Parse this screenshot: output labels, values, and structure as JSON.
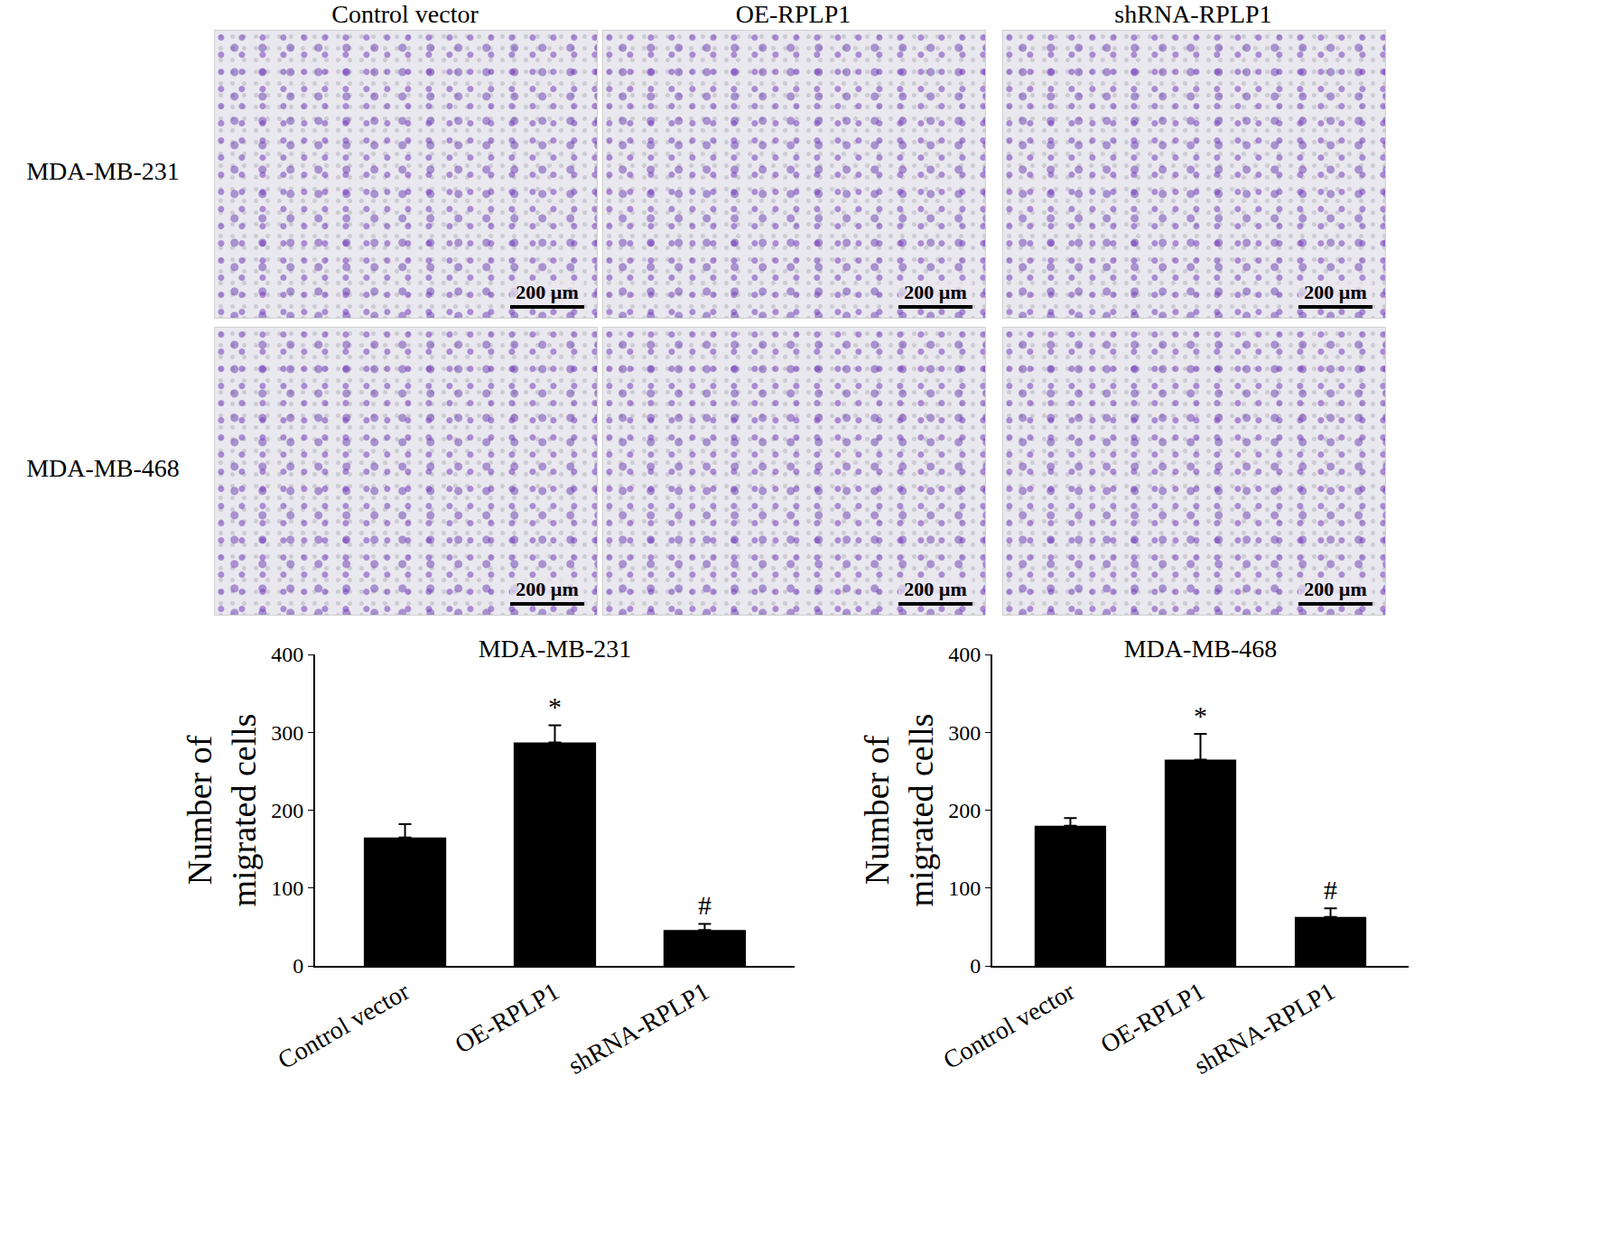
{
  "image_panels": {
    "columns": [
      "Control vector",
      "OE-RPLP1",
      "shRNA-RPLP1"
    ],
    "rows": [
      "MDA-MB-231",
      "MDA-MB-468"
    ],
    "scale_bar": "200 µm"
  },
  "chart_data": [
    {
      "type": "bar",
      "title": "MDA-MB-231",
      "y_label": [
        "Number of",
        "migrated cells"
      ],
      "categories": [
        "Control vector",
        "OE-RPLP1",
        "shRNA-RPLP1"
      ],
      "values": [
        165,
        287,
        46
      ],
      "errors": [
        17,
        22,
        8
      ],
      "marks": [
        null,
        "*",
        "#"
      ],
      "color": "#000000",
      "ylim": [
        0,
        400
      ],
      "yticks": [
        0,
        100,
        200,
        300,
        400
      ],
      "grid": false
    },
    {
      "type": "bar",
      "title": "MDA-MB-468",
      "y_label": [
        "Number of",
        "migrated cells"
      ],
      "categories": [
        "Control vector",
        "OE-RPLP1",
        "shRNA-RPLP1"
      ],
      "values": [
        180,
        265,
        63
      ],
      "errors": [
        10,
        33,
        11
      ],
      "marks": [
        null,
        "*",
        "#"
      ],
      "color": "#000000",
      "ylim": [
        0,
        400
      ],
      "yticks": [
        0,
        100,
        200,
        300,
        400
      ],
      "grid": false
    }
  ]
}
